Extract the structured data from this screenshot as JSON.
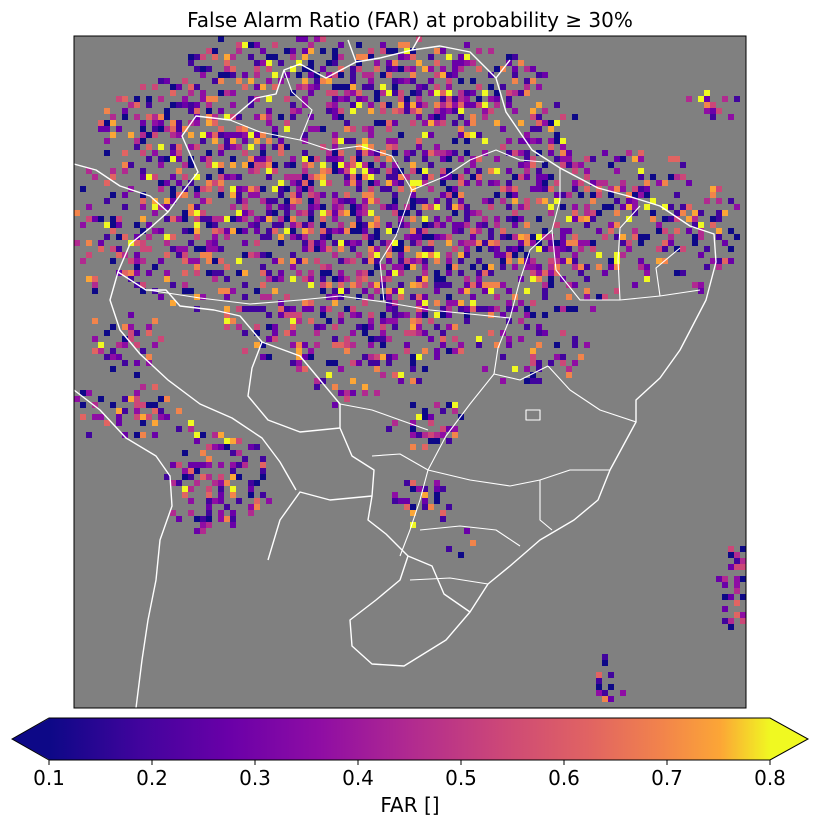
{
  "title": "False Alarm Ratio (FAR) at probability ≥ 30%",
  "map": {
    "background_color": "#808080",
    "border_color": "#ffffff",
    "region": "Brazil and surrounding South America",
    "layers": [
      "country-borders",
      "state-borders",
      "far-grid"
    ]
  },
  "colorbar": {
    "label": "FAR []",
    "colormap": "plasma",
    "range": [
      0.1,
      0.8
    ],
    "extend": "both",
    "ticks": [
      "0.1",
      "0.2",
      "0.3",
      "0.4",
      "0.5",
      "0.6",
      "0.7",
      "0.8"
    ]
  }
}
